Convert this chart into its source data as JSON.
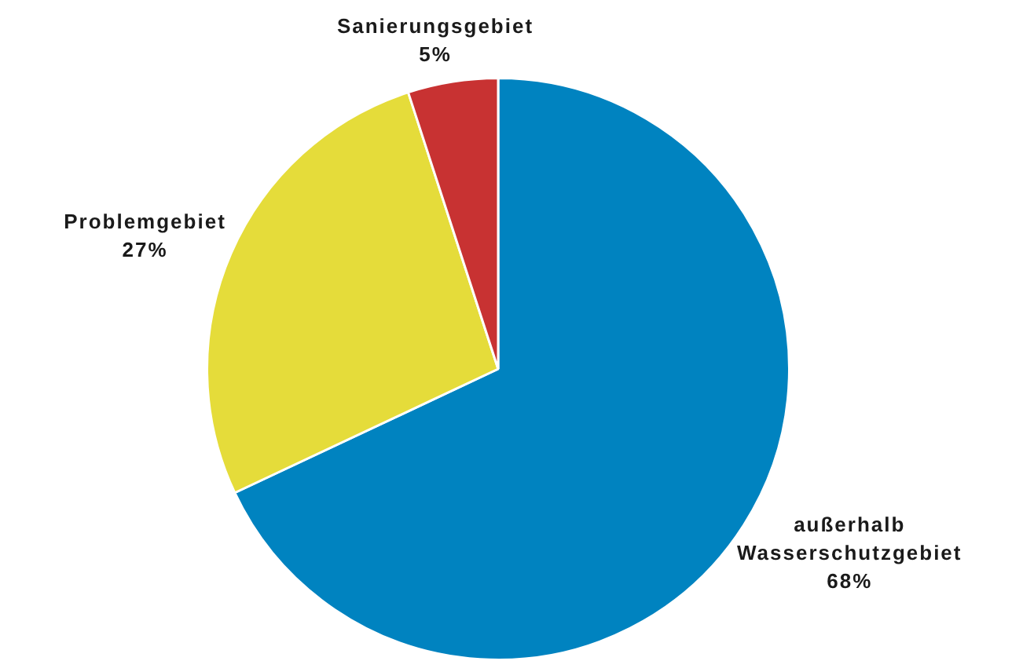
{
  "chart_data": {
    "type": "pie",
    "categories": [
      "außerhalb Wasserschutzgebiet",
      "Problemgebiet",
      "Sanierungsgebiet"
    ],
    "values": [
      68,
      27,
      5
    ],
    "colors": [
      "#0083c0",
      "#e5dc3a",
      "#c83232"
    ],
    "value_labels": [
      "68%",
      "27%",
      "5%"
    ],
    "legend": false
  }
}
